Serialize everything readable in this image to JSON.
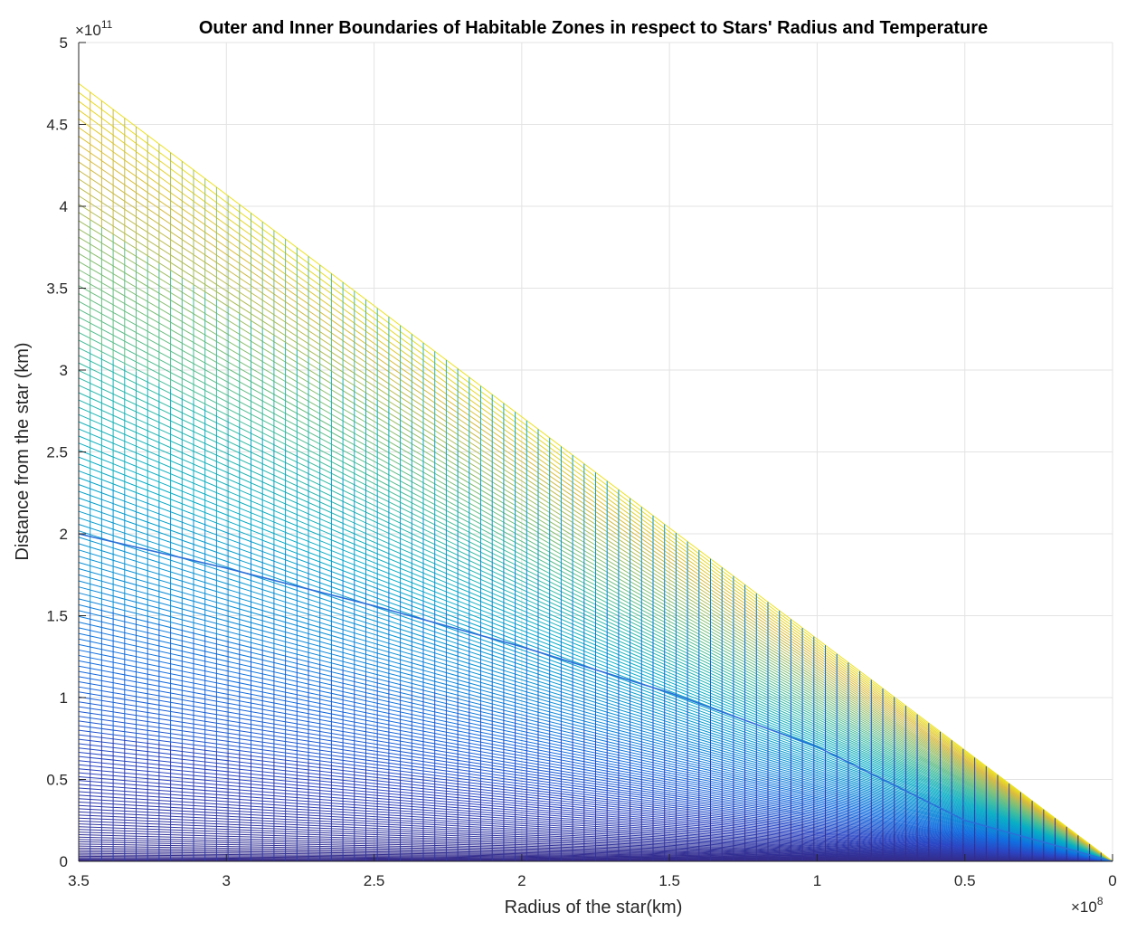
{
  "chart_data": {
    "type": "line",
    "title": "Outer and Inner Boundaries of Habitable Zones in respect to Stars' Radius and Temperature",
    "xlabel": "Radius of the star(km)",
    "ylabel": "Distance from the star (km)",
    "x_direction": "reversed",
    "xlim": [
      0,
      350000000
    ],
    "ylim": [
      0,
      500000000000
    ],
    "x_ticks": [
      3.5,
      3,
      2.5,
      2,
      1.5,
      1,
      0.5,
      0
    ],
    "x_tick_labels": [
      "3.5",
      "3",
      "2.5",
      "2",
      "1.5",
      "1",
      "0.5",
      "0"
    ],
    "x_exponent_base": "×10",
    "x_exponent": "8",
    "y_ticks": [
      0,
      0.5,
      1,
      1.5,
      2,
      2.5,
      3,
      3.5,
      4,
      4.5,
      5
    ],
    "y_tick_labels": [
      "0",
      "0.5",
      "1",
      "1.5",
      "2",
      "2.5",
      "3",
      "3.5",
      "4",
      "4.5",
      "5"
    ],
    "y_exponent_base": "×10",
    "y_exponent": "11",
    "grid": true,
    "legend": "none",
    "colormap": "parula",
    "series_description": "Mesh of boundary lines: distance grows linearly with star radius; slopes fanned from ~0 to a maximum value at 3.5e8 km of ~4.75e11; a separate curve reaches ~2.0e11 at 3.5e8 km",
    "x_samples": [
      0,
      50000000,
      100000000,
      150000000,
      200000000,
      250000000,
      300000000,
      350000000
    ],
    "outer_boundary_max": [
      0,
      67857142857,
      135714285714,
      203571428571,
      271428571429,
      339285714286,
      407142857143,
      475000000000
    ],
    "inner_boundary_curve": [
      0,
      25000000000,
      70000000000,
      103000000000,
      131000000000,
      156000000000,
      179000000000,
      200000000000
    ]
  }
}
